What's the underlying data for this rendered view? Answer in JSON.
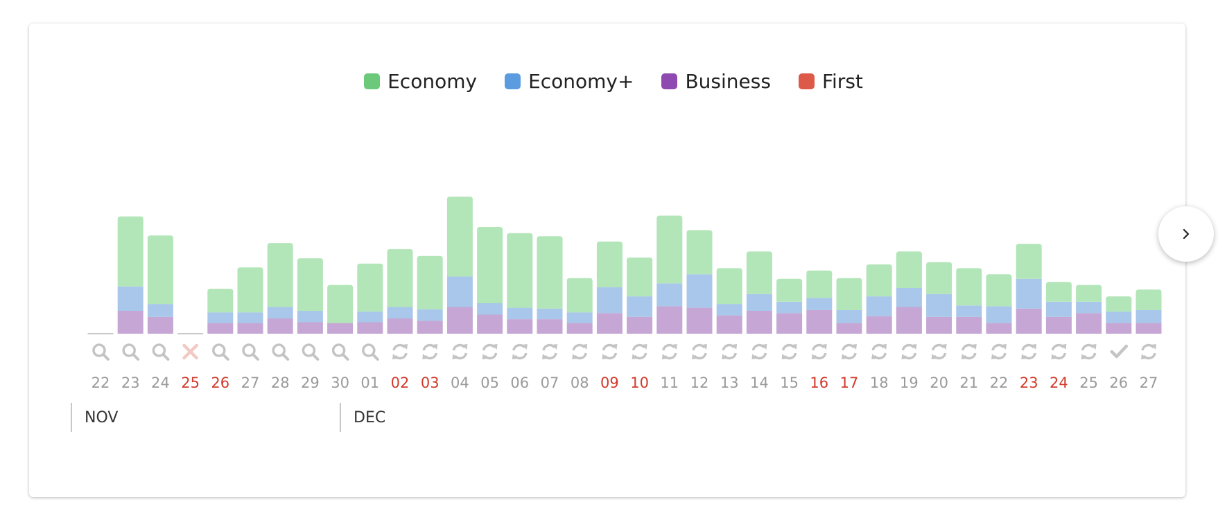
{
  "colors": {
    "economy": "#b2e5b8",
    "economy_plus": "#a8c7ea",
    "business": "#c5a6d4",
    "first": "#e06a5a",
    "legend_economy": "#6cc97a",
    "legend_economy_plus": "#5b9be0",
    "legend_business": "#8e4ab0",
    "legend_first": "#dd5a48",
    "day_label": "#9a9a9a",
    "day_label_highlight": "#d13a2a",
    "icon": "#c4c4c4",
    "icon_error": "#f2c9c4"
  },
  "legend": [
    {
      "label": "Economy",
      "color": "#6cc97a"
    },
    {
      "label": "Economy+",
      "color": "#5b9be0"
    },
    {
      "label": "Business",
      "color": "#8e4ab0"
    },
    {
      "label": "First",
      "color": "#dd5a48"
    }
  ],
  "months": [
    "NOV",
    "DEC"
  ],
  "next_button_icon": "chevron-right-icon",
  "chart_data": {
    "type": "bar",
    "stacked": true,
    "title": "",
    "xlabel": "",
    "ylabel": "",
    "ylim": [
      0,
      180
    ],
    "categories": [
      "22",
      "23",
      "24",
      "25",
      "26",
      "27",
      "28",
      "29",
      "30",
      "01",
      "02",
      "03",
      "04",
      "05",
      "06",
      "07",
      "08",
      "09",
      "10",
      "11",
      "12",
      "13",
      "14",
      "15",
      "16",
      "17",
      "18",
      "19",
      "20",
      "21",
      "22",
      "23",
      "24",
      "25",
      "26",
      "27"
    ],
    "highlighted": [
      false,
      false,
      false,
      true,
      true,
      false,
      false,
      false,
      false,
      false,
      true,
      true,
      false,
      false,
      false,
      false,
      false,
      true,
      true,
      false,
      false,
      false,
      false,
      false,
      true,
      true,
      false,
      false,
      false,
      false,
      false,
      true,
      true,
      false,
      false,
      false
    ],
    "status_icons": [
      "search",
      "search",
      "search",
      "x",
      "search",
      "search",
      "search",
      "search",
      "search",
      "search",
      "refresh",
      "refresh",
      "refresh",
      "refresh",
      "refresh",
      "refresh",
      "refresh",
      "refresh",
      "refresh",
      "refresh",
      "refresh",
      "refresh",
      "refresh",
      "refresh",
      "refresh",
      "refresh",
      "refresh",
      "refresh",
      "refresh",
      "refresh",
      "refresh",
      "refresh",
      "refresh",
      "refresh",
      "check",
      "refresh"
    ],
    "series": [
      {
        "name": "Business",
        "values": [
          0,
          30,
          22,
          0,
          14,
          14,
          20,
          15,
          14,
          15,
          20,
          17,
          35,
          25,
          19,
          19,
          14,
          27,
          22,
          36,
          34,
          24,
          30,
          27,
          31,
          14,
          23,
          35,
          22,
          22,
          14,
          33,
          22,
          27,
          14,
          14
        ]
      },
      {
        "name": "Economy+",
        "values": [
          0,
          32,
          17,
          0,
          14,
          14,
          15,
          15,
          0,
          14,
          15,
          15,
          40,
          15,
          15,
          14,
          14,
          34,
          27,
          30,
          44,
          15,
          22,
          15,
          16,
          17,
          26,
          25,
          30,
          15,
          22,
          39,
          20,
          15,
          15,
          17
        ]
      },
      {
        "name": "Economy",
        "values": [
          0,
          92,
          90,
          0,
          31,
          59,
          84,
          69,
          50,
          63,
          76,
          70,
          105,
          100,
          98,
          95,
          45,
          60,
          51,
          89,
          58,
          47,
          56,
          30,
          36,
          42,
          42,
          48,
          42,
          49,
          42,
          46,
          26,
          22,
          20,
          27
        ]
      },
      {
        "name": "First",
        "values": [
          0,
          0,
          0,
          0,
          0,
          0,
          0,
          0,
          0,
          0,
          0,
          0,
          0,
          0,
          0,
          0,
          0,
          0,
          0,
          0,
          0,
          0,
          0,
          0,
          0,
          0,
          0,
          0,
          0,
          0,
          0,
          0,
          0,
          0,
          0,
          0
        ]
      }
    ]
  }
}
